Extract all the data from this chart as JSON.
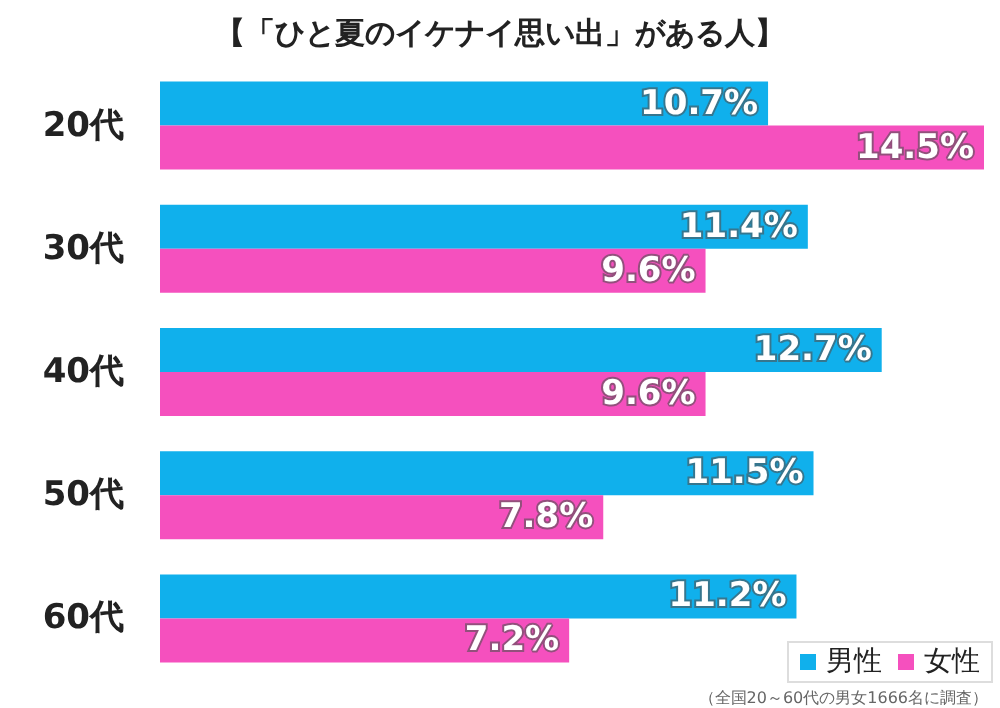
{
  "chart_data": {
    "type": "bar",
    "orientation": "horizontal",
    "title": "【「ひと夏のイケナイ思い出」がある人】",
    "categories": [
      "20代",
      "30代",
      "40代",
      "50代",
      "60代"
    ],
    "series": [
      {
        "name": "男性",
        "color": "#10b0ec",
        "values": [
          10.7,
          11.4,
          12.7,
          11.5,
          11.2
        ],
        "value_labels": [
          "10.7%",
          "11.4%",
          "12.7%",
          "11.5%",
          "11.2%"
        ]
      },
      {
        "name": "女性",
        "color": "#f550be",
        "values": [
          14.5,
          9.6,
          9.6,
          7.8,
          7.2
        ],
        "value_labels": [
          "14.5%",
          "9.6%",
          "9.6%",
          "7.8%",
          "7.2%"
        ]
      }
    ],
    "legend": "bottom right",
    "annotations": [
      "（全国20～60代の男女1666名に調査）"
    ]
  }
}
